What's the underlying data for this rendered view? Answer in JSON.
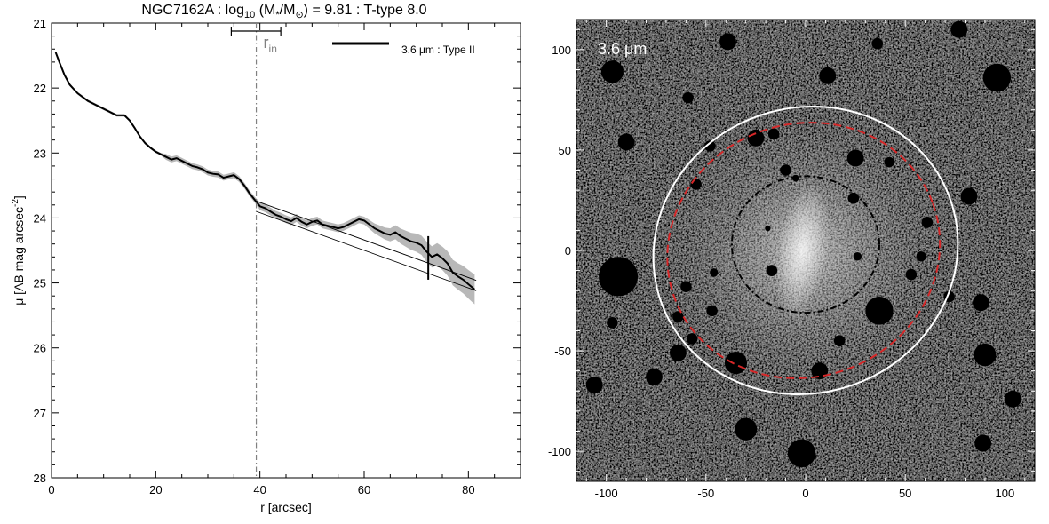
{
  "title": {
    "galaxy": "NGC7162A",
    "sep1": " : log",
    "log_sub": "10",
    "mass_pre": " (M",
    "mass_star": "*",
    "mass_mid": "/M",
    "mass_sun": "⊙",
    "value_part": ") = 9.81 : T-type 8.0"
  },
  "colors": {
    "profile": "#000000",
    "error_band": "#b8b8b8",
    "rin_marker": "#808080",
    "outer_ellipse": "#ffffff",
    "mid_ellipse": "#d62728",
    "inner_ellipse": "#000000"
  },
  "chart_data": [
    {
      "type": "line",
      "xlabel": "r [arcsec]",
      "ylabel_pre": "μ [AB mag arcsec",
      "ylabel_sup": "-2",
      "ylabel_post": "]",
      "xlim": [
        0,
        90
      ],
      "ylim": [
        28,
        21
      ],
      "y_inverted": true,
      "xticks": [
        0,
        20,
        40,
        60,
        80
      ],
      "yticks": [
        21,
        22,
        23,
        24,
        25,
        26,
        27,
        28
      ],
      "grid": false,
      "legend": {
        "placement": "top-right",
        "label": "3.6 μm : Type II"
      },
      "rin_label": "r",
      "rin_sub": "in",
      "rin": 39.3,
      "rin_range": [
        34.5,
        44
      ],
      "break_marker": {
        "x": 72.3,
        "y_range": [
          24.28,
          24.95
        ]
      },
      "series": [
        {
          "name": "3.6 μm : Type II",
          "x": [
            0.8,
            1.5,
            2.5,
            3.5,
            5,
            7,
            9,
            11,
            12.5,
            14,
            15,
            16,
            17,
            18,
            19,
            20,
            21,
            22,
            23,
            24,
            25,
            26,
            27,
            28,
            29,
            30,
            31,
            32,
            33,
            34,
            35,
            36,
            37,
            38,
            39,
            40,
            41,
            42,
            43,
            44,
            45,
            46,
            47,
            48,
            49,
            50,
            51,
            52,
            53,
            54,
            55,
            56,
            57,
            58,
            59,
            60,
            61,
            62,
            63,
            64,
            65,
            66,
            67,
            68,
            69,
            70,
            71,
            72,
            73,
            74,
            75,
            76,
            77,
            78,
            79,
            80,
            81.2
          ],
          "y": [
            21.45,
            21.6,
            21.8,
            21.95,
            22.08,
            22.2,
            22.28,
            22.36,
            22.42,
            22.42,
            22.5,
            22.62,
            22.75,
            22.85,
            22.92,
            22.98,
            23.02,
            23.06,
            23.1,
            23.08,
            23.12,
            23.16,
            23.2,
            23.22,
            23.25,
            23.3,
            23.32,
            23.33,
            23.38,
            23.36,
            23.34,
            23.4,
            23.5,
            23.62,
            23.72,
            23.82,
            23.85,
            23.9,
            23.95,
            23.98,
            24.02,
            24.05,
            24.0,
            24.06,
            24.1,
            24.06,
            24.04,
            24.1,
            24.12,
            24.14,
            24.16,
            24.14,
            24.1,
            24.06,
            24.02,
            24.04,
            24.1,
            24.16,
            24.2,
            24.24,
            24.26,
            24.22,
            24.28,
            24.32,
            24.36,
            24.38,
            24.42,
            24.52,
            24.6,
            24.56,
            24.62,
            24.7,
            24.84,
            24.9,
            24.95,
            25.02,
            25.1
          ]
        }
      ],
      "fit_inner": {
        "x": [
          39.3,
          81.5
        ],
        "y": [
          23.74,
          24.96
        ]
      },
      "fit_outer": {
        "x": [
          39.3,
          81.5
        ],
        "y": [
          23.9,
          25.12
        ]
      }
    },
    {
      "type": "heatmap",
      "panel_label": "3.6 μm",
      "xlim": [
        -115,
        115
      ],
      "ylim": [
        -115,
        115
      ],
      "xticks": [
        -100,
        -50,
        0,
        50,
        100
      ],
      "yticks": [
        -100,
        -50,
        0,
        50,
        100
      ],
      "grid": false,
      "ellipses": [
        {
          "name": "outer",
          "cx": 0,
          "cy": 0,
          "rx": 77,
          "ry": 71,
          "angle": 20,
          "style": "solid"
        },
        {
          "name": "middle",
          "cx": -1,
          "cy": 0,
          "rx": 69,
          "ry": 63,
          "angle": 20,
          "style": "dashed"
        },
        {
          "name": "inner",
          "cx": 0,
          "cy": 3,
          "rx": 37,
          "ry": 34,
          "angle": 0,
          "style": "dash-dot"
        }
      ]
    }
  ]
}
